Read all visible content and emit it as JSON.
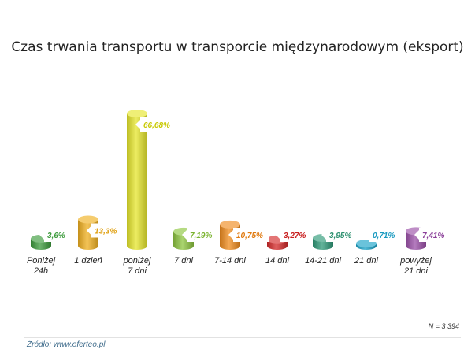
{
  "chart_data": {
    "type": "bar",
    "title": "Czas trwania transportu w transporcie międzynarodowym (eksport)",
    "categories": [
      "Poniżej 24h",
      "1 dzień",
      "poniżej 7 dni",
      "7 dni",
      "7-14 dni",
      "14 dni",
      "14-21 dni",
      "21 dni",
      "powyżej 21 dni"
    ],
    "category_lines": [
      [
        "Poniżej",
        "24h"
      ],
      [
        "1 dzień"
      ],
      [
        "poniżej",
        "7 dni"
      ],
      [
        "7 dni"
      ],
      [
        "7-14 dni"
      ],
      [
        "14 dni"
      ],
      [
        "14-21 dni"
      ],
      [
        "21 dni"
      ],
      [
        "powyżej",
        "21 dni"
      ]
    ],
    "values": [
      3.6,
      13.3,
      66.68,
      7.19,
      10.75,
      3.27,
      3.95,
      0.71,
      7.41
    ],
    "value_labels": [
      "3,6%",
      "13,3%",
      "66,68%",
      "7,19%",
      "10,75%",
      "3,27%",
      "3,95%",
      "0,71%",
      "7,41%"
    ],
    "colors": [
      "#3c9b3c",
      "#f0b020",
      "#e6e62c",
      "#8dc63f",
      "#f08c1e",
      "#d42a2a",
      "#2e9a78",
      "#1aa3c8",
      "#9b4fa8"
    ],
    "label_colors": [
      "#3c9b3c",
      "#e0a010",
      "#c8c800",
      "#7ab32e",
      "#e07a10",
      "#c81e1e",
      "#2a8f6e",
      "#1a9ac0",
      "#8a3e98"
    ],
    "ylim": [
      0,
      70
    ],
    "grid": false,
    "legend": "none",
    "xlabel": "",
    "ylabel": ""
  },
  "footer": {
    "n": "N = 3 394",
    "source": "Źródło: www.oferteo.pl"
  }
}
